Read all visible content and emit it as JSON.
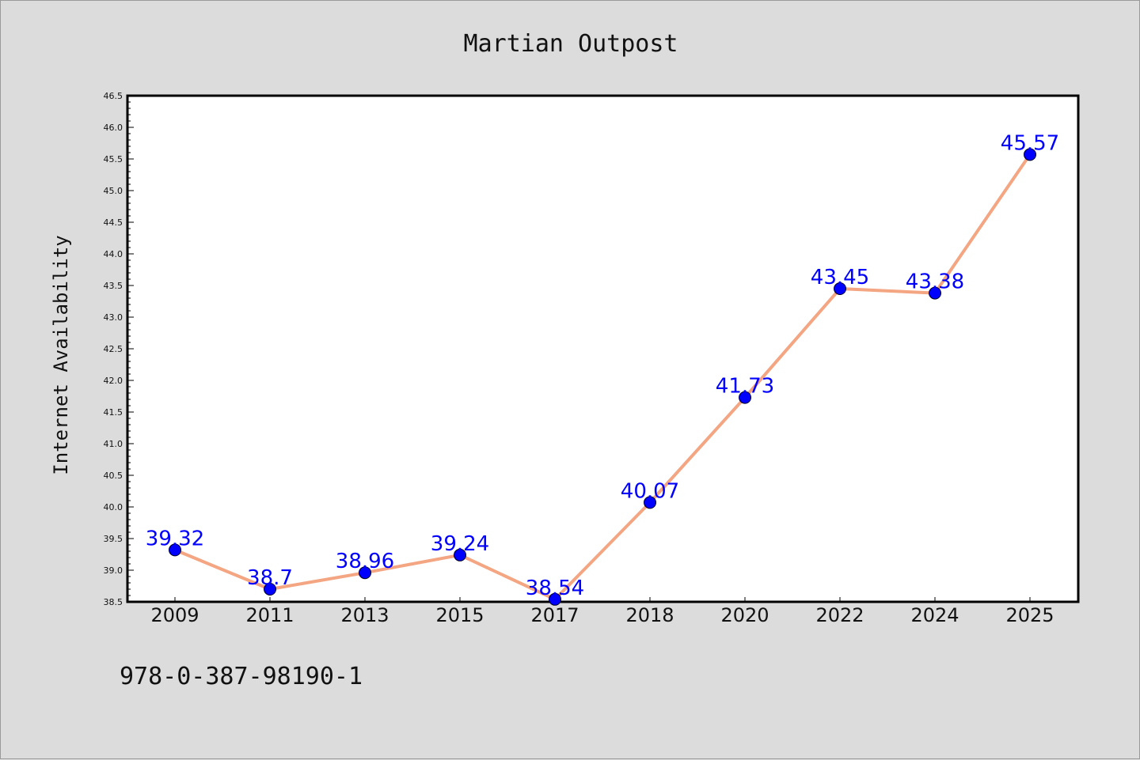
{
  "footer_text": "978-0-387-98190-1",
  "colors": {
    "background": "#dcdcdc",
    "plot_background": "#ffffff",
    "line": "#f4a582",
    "marker": "#0000ff",
    "data_label": "#0000ff"
  },
  "chart_data": {
    "type": "line",
    "title": "Martian Outpost",
    "xlabel": "",
    "ylabel": "Internet Availability",
    "categories": [
      "2009",
      "2011",
      "2013",
      "2015",
      "2017",
      "2018",
      "2020",
      "2022",
      "2024",
      "2025"
    ],
    "series": [
      {
        "values": [
          39.32,
          38.7,
          38.96,
          39.24,
          38.54,
          40.07,
          41.73,
          43.45,
          43.38,
          45.57
        ]
      }
    ],
    "data_labels": [
      "39.32",
      "38.7",
      "38.96",
      "39.24",
      "38.54",
      "40.07",
      "41.73",
      "43.45",
      "43.38",
      "45.57"
    ],
    "ylim": [
      38.5,
      46.5
    ],
    "yticks": [
      "38.5",
      "39.0",
      "39.5",
      "40.0",
      "40.5",
      "41.0",
      "41.5",
      "42.0",
      "42.5",
      "43.0",
      "43.5",
      "44.0",
      "44.5",
      "45.0",
      "45.5",
      "46.0",
      "46.5"
    ],
    "grid": false,
    "legend": "none"
  }
}
